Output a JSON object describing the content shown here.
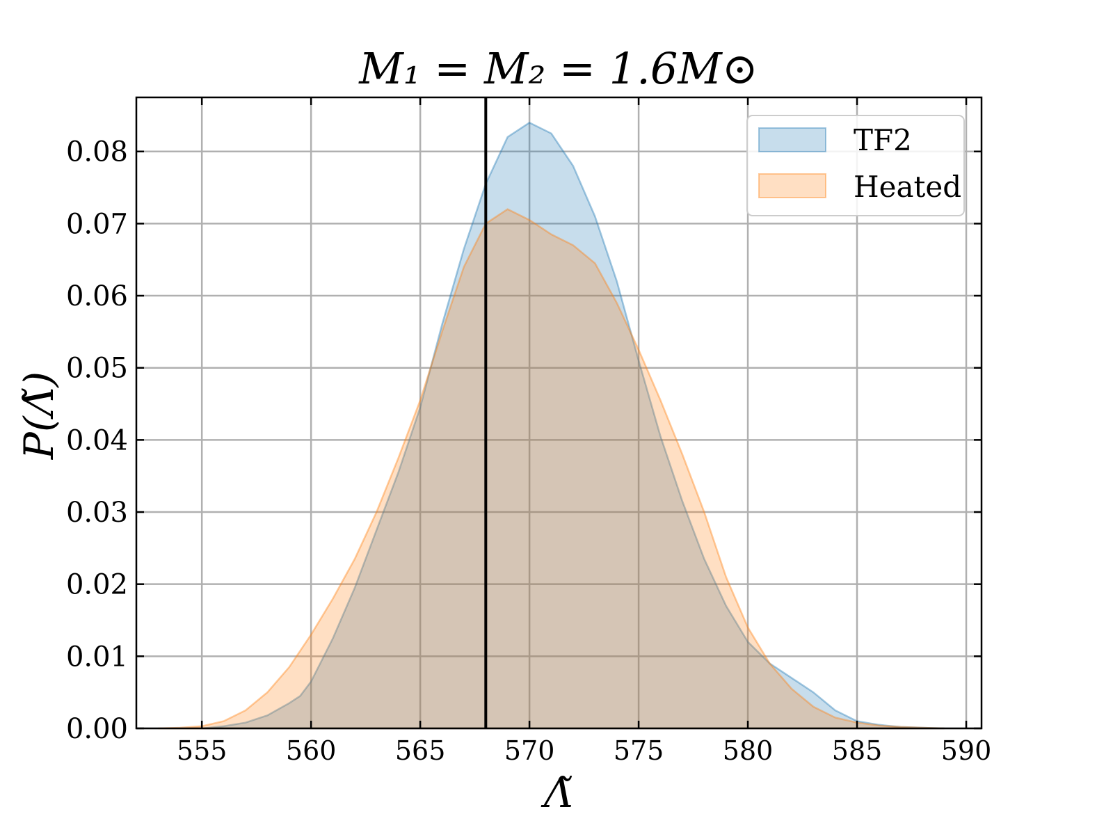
{
  "chart_data": {
    "type": "area",
    "title": "M₁ = M₂ = 1.6M⊙",
    "xlabel": "Λ̃",
    "ylabel": "P(Λ̃)",
    "xlim": [
      552,
      590.7
    ],
    "ylim": [
      0,
      0.0875
    ],
    "xticks": [
      555,
      560,
      565,
      570,
      575,
      580,
      585,
      590
    ],
    "yticks": [
      0.0,
      0.01,
      0.02,
      0.03,
      0.04,
      0.05,
      0.06,
      0.07,
      0.08
    ],
    "xtick_labels": [
      "555",
      "560",
      "565",
      "570",
      "575",
      "580",
      "585",
      "590"
    ],
    "ytick_labels": [
      "0.00",
      "0.01",
      "0.02",
      "0.03",
      "0.04",
      "0.05",
      "0.06",
      "0.07",
      "0.08"
    ],
    "grid": true,
    "legend_position": "top-right",
    "vertical_line": {
      "x": 568.0,
      "color": "#000000"
    },
    "series": [
      {
        "name": "TF2",
        "color": "#1f77b4",
        "x": [
          555,
          556,
          557,
          558,
          559,
          559.5,
          560,
          561,
          562,
          563,
          564,
          565,
          566,
          567,
          568,
          569,
          570,
          571,
          572,
          573,
          574,
          575,
          576,
          577,
          578,
          579,
          580,
          581,
          582,
          583,
          584,
          585,
          586,
          587,
          588,
          589
        ],
        "values": [
          0.0,
          0.0003,
          0.0008,
          0.0018,
          0.0035,
          0.0045,
          0.0065,
          0.0125,
          0.0195,
          0.0275,
          0.0355,
          0.0445,
          0.056,
          0.0665,
          0.0755,
          0.082,
          0.084,
          0.0825,
          0.078,
          0.071,
          0.062,
          0.051,
          0.0405,
          0.0315,
          0.0235,
          0.017,
          0.012,
          0.009,
          0.007,
          0.005,
          0.0025,
          0.001,
          0.0005,
          0.0002,
          0.0001,
          0.0
        ]
      },
      {
        "name": "Heated",
        "color": "#ff7f0e",
        "x": [
          553,
          554,
          555,
          556,
          557,
          558,
          559,
          560,
          561,
          562,
          563,
          564,
          565,
          566,
          567,
          568,
          569,
          570,
          571,
          572,
          573,
          574,
          575,
          576,
          577,
          578,
          579,
          580,
          581,
          582,
          583,
          584,
          585,
          586,
          587,
          588,
          589
        ],
        "values": [
          0.0,
          0.0001,
          0.0003,
          0.001,
          0.0025,
          0.005,
          0.0085,
          0.013,
          0.018,
          0.0235,
          0.03,
          0.0375,
          0.0455,
          0.055,
          0.064,
          0.07,
          0.072,
          0.0705,
          0.0685,
          0.067,
          0.0645,
          0.059,
          0.0525,
          0.0455,
          0.038,
          0.03,
          0.021,
          0.014,
          0.009,
          0.0055,
          0.003,
          0.0015,
          0.0008,
          0.0004,
          0.0002,
          0.0001,
          0.0
        ]
      }
    ]
  }
}
